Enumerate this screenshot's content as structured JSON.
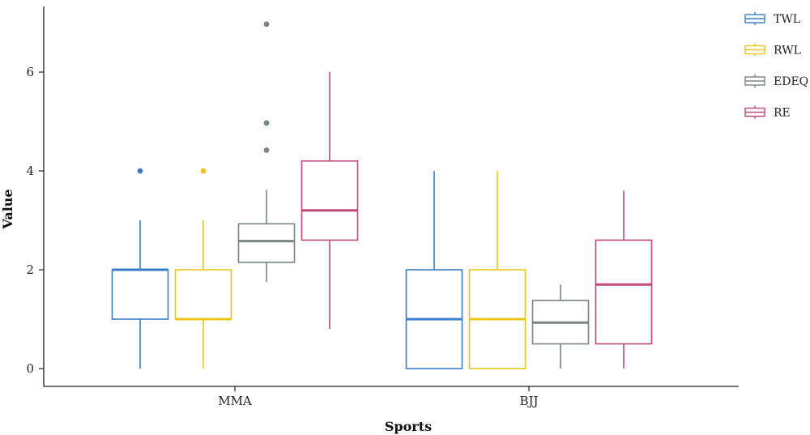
{
  "chart_data": {
    "type": "boxplot",
    "title": "",
    "xlabel": "Sports",
    "ylabel": "Value",
    "ylim": [
      -0.35,
      7.3
    ],
    "yticks": [
      0,
      2,
      4,
      6
    ],
    "categories": [
      "MMA",
      "BJJ"
    ],
    "grid": false,
    "legend_position": "right",
    "series": [
      {
        "name": "TWL",
        "color": "#3a7ec8",
        "boxes": [
          {
            "category": "MMA",
            "min": 0,
            "q1": 1,
            "median": 2,
            "q3": 2,
            "max": 3,
            "outliers": [
              4
            ]
          },
          {
            "category": "BJJ",
            "min": 0,
            "q1": 0,
            "median": 1,
            "q3": 2,
            "max": 4,
            "outliers": []
          }
        ]
      },
      {
        "name": "RWL",
        "color": "#e8c619",
        "boxes": [
          {
            "category": "MMA",
            "min": 0,
            "q1": 1,
            "median": 1,
            "q3": 2,
            "max": 3,
            "outliers": [
              4
            ]
          },
          {
            "category": "BJJ",
            "min": 0,
            "q1": 0,
            "median": 1,
            "q3": 2,
            "max": 4,
            "outliers": []
          }
        ]
      },
      {
        "name": "EDEQ",
        "color": "#7c8481",
        "boxes": [
          {
            "category": "MMA",
            "min": 1.75,
            "q1": 2.15,
            "median": 2.58,
            "q3": 2.93,
            "max": 3.62,
            "outliers": [
              4.42,
              4.97,
              6.97
            ]
          },
          {
            "category": "BJJ",
            "min": 0,
            "q1": 0.5,
            "median": 0.93,
            "q3": 1.38,
            "max": 1.7,
            "outliers": []
          }
        ]
      },
      {
        "name": "RE",
        "color": "#c0497a",
        "boxes": [
          {
            "category": "MMA",
            "min": 0.8,
            "q1": 2.6,
            "median": 3.2,
            "q3": 4.2,
            "max": 6.0,
            "outliers": []
          },
          {
            "category": "BJJ",
            "min": 0,
            "q1": 0.5,
            "median": 1.7,
            "q3": 2.6,
            "max": 3.6,
            "outliers": []
          }
        ]
      }
    ]
  }
}
